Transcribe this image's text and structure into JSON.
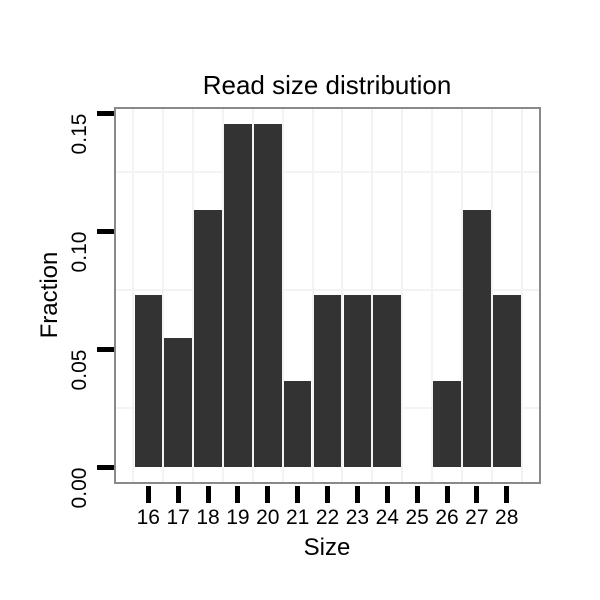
{
  "chart_data": {
    "type": "bar",
    "title": "Read size distribution",
    "xlabel": "Size",
    "ylabel": "Fraction",
    "categories": [
      "16",
      "17",
      "18",
      "19",
      "20",
      "21",
      "22",
      "23",
      "24",
      "25",
      "26",
      "27",
      "28"
    ],
    "values": [
      0.0727,
      0.0545,
      0.1091,
      0.1455,
      0.1455,
      0.0364,
      0.0727,
      0.0727,
      0.0727,
      0,
      0.0364,
      0.1091,
      0.0727
    ],
    "y_ticks": [
      {
        "label": "0.00",
        "value": 0
      },
      {
        "label": "0.05",
        "value": 0.05
      },
      {
        "label": "0.10",
        "value": 0.1
      },
      {
        "label": "0.15",
        "value": 0.15
      }
    ],
    "minor_gridlines_y": [
      0.025,
      0.075,
      0.125
    ],
    "ylim": [
      0,
      0.155
    ],
    "grid": "faint minor gridlines on white panel",
    "legend": "none",
    "colors": {
      "bar": "#333333",
      "panel_border": "#898989",
      "grid": "#f3f3f3",
      "tick": "#000000",
      "text": "#000000",
      "background": "#ffffff"
    }
  }
}
